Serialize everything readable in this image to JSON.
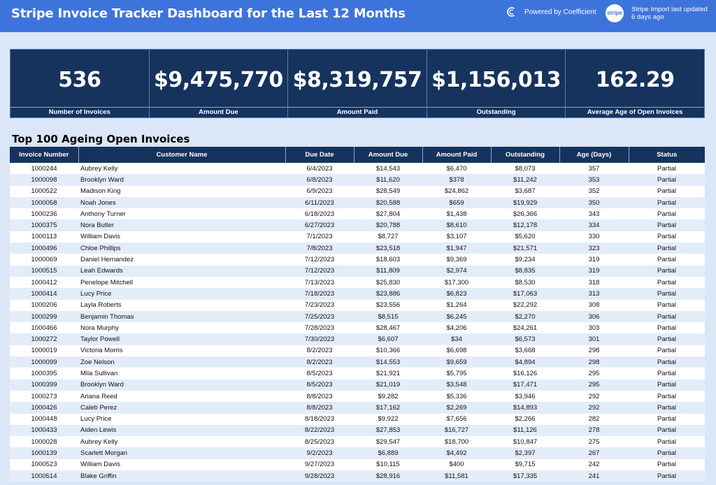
{
  "header": {
    "title": "Stripe Invoice Tracker Dashboard for the Last 12 Months",
    "powered_by": "Powered by Coefficient",
    "stripe_logo": "stripe",
    "import_status": "Stripe Import last updated 6 days ago",
    "icons": {
      "coefficient": "coefficient-logo-icon",
      "stripe": "stripe-logo-badge"
    }
  },
  "kpis": [
    {
      "value": "536",
      "label": "Number of Invoices"
    },
    {
      "value": "$9,475,770",
      "label": "Amount Due"
    },
    {
      "value": "$8,319,757",
      "label": "Amount Paid"
    },
    {
      "value": "$1,156,013",
      "label": "Outstanding"
    },
    {
      "value": "162.29",
      "label": "Average Age of Open Invoices"
    }
  ],
  "table": {
    "title": "Top 100 Ageing Open Invoices",
    "columns": [
      "Invoice Number",
      "Customer Name",
      "Due Date",
      "Amount Due",
      "Amount Paid",
      "Outstanding",
      "Age (Days)",
      "Status"
    ],
    "rows": [
      [
        "1000244",
        "Aubrey Kelly",
        "6/4/2023",
        "$14,543",
        "$6,470",
        "$8,073",
        "357",
        "Partial"
      ],
      [
        "1000098",
        "Brooklyn Ward",
        "6/8/2023",
        "$11,620",
        "$378",
        "$11,242",
        "353",
        "Partial"
      ],
      [
        "1000522",
        "Madison King",
        "6/9/2023",
        "$28,549",
        "$24,862",
        "$3,687",
        "352",
        "Partial"
      ],
      [
        "1000058",
        "Noah Jones",
        "6/11/2023",
        "$20,588",
        "$659",
        "$19,929",
        "350",
        "Partial"
      ],
      [
        "1000236",
        "Anthony Turner",
        "6/18/2023",
        "$27,804",
        "$1,438",
        "$26,366",
        "343",
        "Partial"
      ],
      [
        "1000375",
        "Nora Butler",
        "6/27/2023",
        "$20,788",
        "$8,610",
        "$12,178",
        "334",
        "Partial"
      ],
      [
        "1000113",
        "William Davis",
        "7/1/2023",
        "$8,727",
        "$3,107",
        "$5,620",
        "330",
        "Partial"
      ],
      [
        "1000496",
        "Chloe Phillips",
        "7/8/2023",
        "$23,518",
        "$1,947",
        "$21,571",
        "323",
        "Partial"
      ],
      [
        "1000069",
        "Daniel Hernandez",
        "7/12/2023",
        "$18,603",
        "$9,369",
        "$9,234",
        "319",
        "Partial"
      ],
      [
        "1000515",
        "Leah Edwards",
        "7/12/2023",
        "$11,809",
        "$2,974",
        "$8,835",
        "319",
        "Partial"
      ],
      [
        "1000412",
        "Penelope Mitchell",
        "7/13/2023",
        "$25,830",
        "$17,300",
        "$8,530",
        "318",
        "Partial"
      ],
      [
        "1000414",
        "Lucy Price",
        "7/18/2023",
        "$23,886",
        "$6,823",
        "$17,063",
        "313",
        "Partial"
      ],
      [
        "1000206",
        "Layla Roberts",
        "7/23/2023",
        "$23,556",
        "$1,264",
        "$22,292",
        "308",
        "Partial"
      ],
      [
        "1000299",
        "Benjamin Thomas",
        "7/25/2023",
        "$8,515",
        "$6,245",
        "$2,270",
        "306",
        "Partial"
      ],
      [
        "1000466",
        "Nora Murphy",
        "7/28/2023",
        "$28,467",
        "$4,206",
        "$24,261",
        "303",
        "Partial"
      ],
      [
        "1000272",
        "Taylor Powell",
        "7/30/2023",
        "$6,607",
        "$34",
        "$6,573",
        "301",
        "Partial"
      ],
      [
        "1000019",
        "Victoria Morris",
        "8/2/2023",
        "$10,366",
        "$6,698",
        "$3,668",
        "298",
        "Partial"
      ],
      [
        "1000099",
        "Zoe Nelson",
        "8/2/2023",
        "$14,553",
        "$9,659",
        "$4,894",
        "298",
        "Partial"
      ],
      [
        "1000395",
        "Mila Sullivan",
        "8/5/2023",
        "$21,921",
        "$5,795",
        "$16,126",
        "295",
        "Partial"
      ],
      [
        "1000399",
        "Brooklyn Ward",
        "8/5/2023",
        "$21,019",
        "$3,548",
        "$17,471",
        "295",
        "Partial"
      ],
      [
        "1000273",
        "Ariana Reed",
        "8/8/2023",
        "$9,282",
        "$5,336",
        "$3,946",
        "292",
        "Partial"
      ],
      [
        "1000426",
        "Caleb Perez",
        "8/8/2023",
        "$17,162",
        "$2,269",
        "$14,893",
        "292",
        "Partial"
      ],
      [
        "1000448",
        "Lucy Price",
        "8/18/2023",
        "$9,922",
        "$7,656",
        "$2,266",
        "282",
        "Partial"
      ],
      [
        "1000433",
        "Aiden Lewis",
        "8/22/2023",
        "$27,853",
        "$16,727",
        "$11,126",
        "278",
        "Partial"
      ],
      [
        "1000028",
        "Aubrey Kelly",
        "8/25/2023",
        "$29,547",
        "$18,700",
        "$10,847",
        "275",
        "Partial"
      ],
      [
        "1000139",
        "Scarlett Morgan",
        "9/2/2023",
        "$6,889",
        "$4,492",
        "$2,397",
        "267",
        "Partial"
      ],
      [
        "1000523",
        "William Davis",
        "9/27/2023",
        "$10,115",
        "$400",
        "$9,715",
        "242",
        "Partial"
      ],
      [
        "1000514",
        "Blake Griffin",
        "9/28/2023",
        "$28,916",
        "$11,581",
        "$17,335",
        "241",
        "Partial"
      ]
    ]
  }
}
